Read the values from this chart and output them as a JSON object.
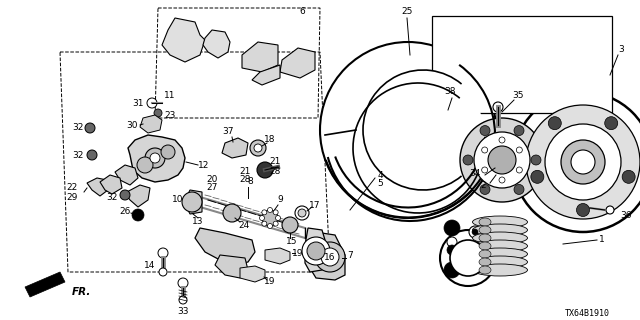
{
  "bg_color": "#ffffff",
  "diagram_code": "TX64B1910",
  "fig_w": 6.4,
  "fig_h": 3.2,
  "dpi": 100
}
